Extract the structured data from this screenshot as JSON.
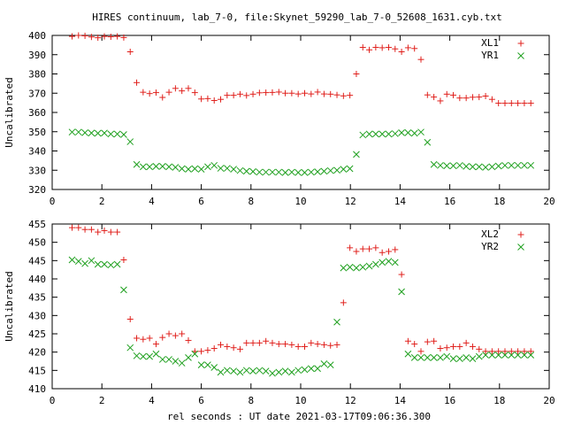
{
  "title": "HIRES continuum, lab_7-0, file:Skynet_59290_lab_7-0_52608_1631.cyb.txt",
  "xlabel": "rel seconds : UT date 2021-03-17T09:06:36.300",
  "colors": {
    "red": "#e0201c",
    "green": "#1fa01f",
    "axis": "#000000"
  },
  "chart_data": [
    {
      "type": "scatter",
      "ylabel": "Uncalibrated",
      "xlim": [
        0,
        20
      ],
      "ylim": [
        320,
        400
      ],
      "xticks": [
        0,
        2,
        4,
        6,
        8,
        10,
        12,
        14,
        16,
        18,
        20
      ],
      "yticks": [
        320,
        330,
        340,
        350,
        360,
        370,
        380,
        390,
        400
      ],
      "legend_position": "top-right",
      "grid": false,
      "series": [
        {
          "name": "XL1",
          "marker": "plus",
          "color": "#e0201c",
          "x": [
            0.8,
            1.06,
            1.32,
            1.58,
            1.84,
            2.1,
            2.36,
            2.62,
            2.88,
            3.14,
            3.4,
            3.66,
            3.92,
            4.18,
            4.44,
            4.7,
            4.96,
            5.22,
            5.48,
            5.74,
            6.0,
            6.26,
            6.52,
            6.78,
            7.04,
            7.3,
            7.56,
            7.82,
            8.08,
            8.34,
            8.6,
            8.86,
            9.12,
            9.38,
            9.64,
            9.9,
            10.16,
            10.42,
            10.68,
            10.94,
            11.2,
            11.46,
            11.72,
            11.98,
            12.24,
            12.5,
            12.76,
            13.02,
            13.28,
            13.54,
            13.8,
            14.06,
            14.32,
            14.58,
            14.84,
            15.1,
            15.36,
            15.62,
            15.88,
            16.14,
            16.4,
            16.66,
            16.92,
            17.18,
            17.44,
            17.7,
            17.96,
            18.22,
            18.48,
            18.74,
            19.0,
            19.26
          ],
          "y": [
            399.5,
            400,
            399.8,
            399.2,
            398.8,
            399.5,
            399.3,
            399.5,
            398.9,
            391.5,
            375.5,
            370.5,
            369.8,
            370.3,
            367.8,
            370.5,
            372.5,
            371.2,
            372.5,
            370.3,
            367,
            367.2,
            366.2,
            366.8,
            368.9,
            368.9,
            369.5,
            368.8,
            369.5,
            370.2,
            370.3,
            370.4,
            370.6,
            370,
            370,
            369.6,
            370,
            369.6,
            370.6,
            369.6,
            369.5,
            369.1,
            368.6,
            368.9,
            380,
            393.8,
            392.5,
            393.8,
            393.6,
            393.8,
            393,
            391.5,
            393.6,
            393.2,
            387.5,
            369.1,
            368,
            366,
            369.5,
            369,
            367.5,
            367.5,
            367.9,
            368,
            368.5,
            366.8,
            364.8,
            364.8,
            364.8,
            364.8,
            364.8,
            364.8
          ]
        },
        {
          "name": "YR1",
          "marker": "cross",
          "color": "#1fa01f",
          "x": [
            0.8,
            1.06,
            1.32,
            1.58,
            1.84,
            2.1,
            2.36,
            2.62,
            2.88,
            3.14,
            3.4,
            3.66,
            3.92,
            4.18,
            4.44,
            4.7,
            4.96,
            5.22,
            5.48,
            5.74,
            6.0,
            6.26,
            6.52,
            6.78,
            7.04,
            7.3,
            7.56,
            7.82,
            8.08,
            8.34,
            8.6,
            8.86,
            9.12,
            9.38,
            9.64,
            9.9,
            10.16,
            10.42,
            10.68,
            10.94,
            11.2,
            11.46,
            11.72,
            11.98,
            12.24,
            12.5,
            12.76,
            13.02,
            13.28,
            13.54,
            13.8,
            14.06,
            14.32,
            14.58,
            14.84,
            15.1,
            15.36,
            15.62,
            15.88,
            16.14,
            16.4,
            16.66,
            16.92,
            17.18,
            17.44,
            17.7,
            17.96,
            18.22,
            18.48,
            18.74,
            19.0,
            19.26
          ],
          "y": [
            349.8,
            349.8,
            349.5,
            349.3,
            349.2,
            349.3,
            348.8,
            348.8,
            348.5,
            344.8,
            333,
            331.8,
            331.8,
            332,
            332,
            331.8,
            331.5,
            330.8,
            330.5,
            330.8,
            330.5,
            331.8,
            332.5,
            331,
            331,
            330.5,
            329.8,
            329.5,
            329.3,
            329,
            329,
            329,
            329,
            328.8,
            329,
            328.8,
            328.8,
            329,
            329.2,
            329.5,
            329.8,
            330,
            330.5,
            330.8,
            338.2,
            348.3,
            348.8,
            348.8,
            348.8,
            348.8,
            349,
            349.5,
            349.5,
            349.2,
            349.8,
            344.5,
            333,
            332.5,
            332.3,
            332.3,
            332.5,
            332,
            331.8,
            331.8,
            331.5,
            331.8,
            332.2,
            332.5,
            332.5,
            332.5,
            332.5,
            332.5
          ]
        }
      ]
    },
    {
      "type": "scatter",
      "ylabel": "Uncalibrated",
      "xlim": [
        0,
        20
      ],
      "ylim": [
        410,
        455
      ],
      "xticks": [
        0,
        2,
        4,
        6,
        8,
        10,
        12,
        14,
        16,
        18,
        20
      ],
      "yticks": [
        410,
        415,
        420,
        425,
        430,
        435,
        440,
        445,
        450,
        455
      ],
      "legend_position": "top-right",
      "grid": false,
      "series": [
        {
          "name": "XL2",
          "marker": "plus",
          "color": "#e0201c",
          "x": [
            0.8,
            1.06,
            1.32,
            1.58,
            1.84,
            2.1,
            2.36,
            2.62,
            2.88,
            3.14,
            3.4,
            3.66,
            3.92,
            4.18,
            4.44,
            4.7,
            4.96,
            5.22,
            5.48,
            5.74,
            6.0,
            6.26,
            6.52,
            6.78,
            7.04,
            7.3,
            7.56,
            7.82,
            8.08,
            8.34,
            8.6,
            8.86,
            9.12,
            9.38,
            9.64,
            9.9,
            10.16,
            10.42,
            10.68,
            10.94,
            11.2,
            11.46,
            11.72,
            11.98,
            12.24,
            12.5,
            12.76,
            13.02,
            13.28,
            13.54,
            13.8,
            14.06,
            14.32,
            14.58,
            14.84,
            15.1,
            15.36,
            15.62,
            15.88,
            16.14,
            16.4,
            16.66,
            16.92,
            17.18,
            17.44,
            17.7,
            17.96,
            18.22,
            18.48,
            18.74,
            19.0,
            19.26
          ],
          "y": [
            454,
            454,
            453.5,
            453.5,
            452.8,
            453.2,
            452.8,
            452.8,
            445.2,
            429,
            423.8,
            423.5,
            423.8,
            422.2,
            424,
            425,
            424.5,
            425,
            423.2,
            420.2,
            420.2,
            420.5,
            421,
            422,
            421.5,
            421.2,
            420.8,
            422.5,
            422.5,
            422.5,
            423,
            422.5,
            422.2,
            422.2,
            422,
            421.5,
            421.5,
            422.5,
            422.2,
            422,
            421.8,
            422,
            433.5,
            448.5,
            447.5,
            448.2,
            448.2,
            448.5,
            447.2,
            447.5,
            448,
            441.2,
            423,
            422.2,
            420.2,
            422.8,
            423,
            421,
            421.2,
            421.5,
            421.5,
            422.5,
            421.5,
            420.8,
            420.2,
            420.2,
            420.2,
            420.2,
            420.2,
            420.2,
            420.2,
            420.2
          ]
        },
        {
          "name": "YR2",
          "marker": "cross",
          "color": "#1fa01f",
          "x": [
            0.8,
            1.06,
            1.32,
            1.58,
            1.84,
            2.1,
            2.36,
            2.62,
            2.88,
            3.14,
            3.4,
            3.66,
            3.92,
            4.18,
            4.44,
            4.7,
            4.96,
            5.22,
            5.48,
            5.74,
            6.0,
            6.26,
            6.52,
            6.78,
            7.04,
            7.3,
            7.56,
            7.82,
            8.08,
            8.34,
            8.6,
            8.86,
            9.12,
            9.38,
            9.64,
            9.9,
            10.16,
            10.42,
            10.68,
            10.94,
            11.2,
            11.46,
            11.72,
            11.98,
            12.24,
            12.5,
            12.76,
            13.02,
            13.28,
            13.54,
            13.8,
            14.06,
            14.32,
            14.58,
            14.84,
            15.1,
            15.36,
            15.62,
            15.88,
            16.14,
            16.4,
            16.66,
            16.92,
            17.18,
            17.44,
            17.7,
            17.96,
            18.22,
            18.48,
            18.74,
            19.0,
            19.26
          ],
          "y": [
            445.2,
            444.8,
            444.2,
            445,
            444,
            444,
            443.8,
            444,
            437,
            421.2,
            419,
            418.8,
            418.8,
            419.5,
            418,
            418,
            417.5,
            417,
            418.5,
            419.5,
            416.5,
            416.5,
            415.8,
            414.5,
            415,
            414.8,
            414.5,
            415,
            414.8,
            415,
            414.8,
            414.2,
            414.5,
            414.8,
            414.5,
            415,
            415.2,
            415.5,
            415.5,
            416.8,
            416.5,
            428.2,
            443,
            443.2,
            443,
            443.2,
            443.5,
            444,
            444.5,
            444.8,
            444.5,
            436.5,
            419.5,
            418.5,
            418.5,
            418.5,
            418.5,
            418.5,
            418.8,
            418.2,
            418.2,
            418.5,
            418.2,
            418.8,
            419.2,
            419.2,
            419.2,
            419.2,
            419.2,
            419.2,
            419.2,
            419.2
          ]
        }
      ]
    }
  ]
}
